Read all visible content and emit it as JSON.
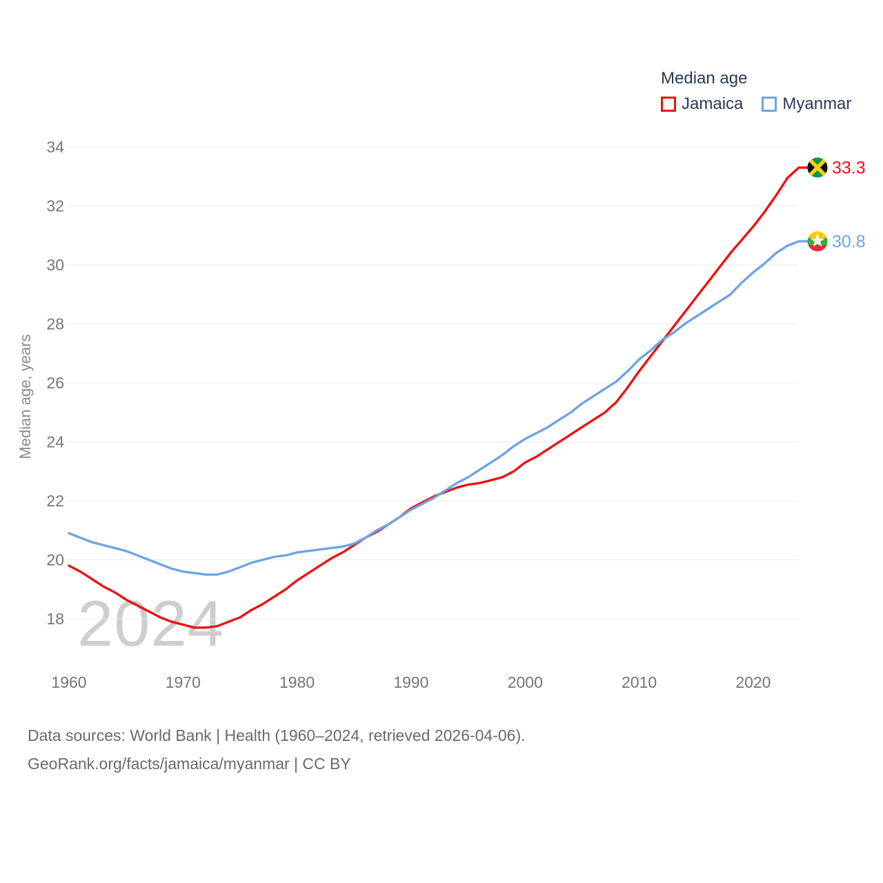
{
  "chart_data": {
    "type": "line",
    "title": "Median age",
    "ylabel": "Median age, years",
    "years_range": [
      1960,
      2024
    ],
    "xticks": [
      1960,
      1970,
      1980,
      1990,
      2000,
      2010,
      2020
    ],
    "yticks": [
      18,
      20,
      22,
      24,
      26,
      28,
      30,
      32,
      34
    ],
    "ylim": [
      17.2,
      34.6
    ],
    "grid": "horizontal",
    "legend_position": "top-right",
    "watermark": "2024",
    "series": [
      {
        "name": "Jamaica",
        "color": "#ee1111",
        "end_label": "33.3",
        "values": [
          19.8,
          19.6,
          19.35,
          19.1,
          18.9,
          18.65,
          18.45,
          18.25,
          18.05,
          17.9,
          17.8,
          17.7,
          17.7,
          17.75,
          17.9,
          18.05,
          18.3,
          18.5,
          18.75,
          19.0,
          19.3,
          19.55,
          19.8,
          20.05,
          20.25,
          20.5,
          20.75,
          20.95,
          21.2,
          21.45,
          21.75,
          21.95,
          22.15,
          22.3,
          22.45,
          22.55,
          22.6,
          22.7,
          22.8,
          23.0,
          23.3,
          23.5,
          23.75,
          24.0,
          24.25,
          24.5,
          24.75,
          25.0,
          25.35,
          25.85,
          26.4,
          26.9,
          27.4,
          27.9,
          28.4,
          28.9,
          29.4,
          29.9,
          30.4,
          30.85,
          31.3,
          31.8,
          32.35,
          32.95,
          33.3
        ]
      },
      {
        "name": "Myanmar",
        "color": "#6da4e4",
        "end_label": "30.8",
        "values": [
          20.9,
          20.75,
          20.6,
          20.5,
          20.4,
          20.3,
          20.15,
          20.0,
          19.85,
          19.7,
          19.6,
          19.55,
          19.5,
          19.5,
          19.6,
          19.75,
          19.9,
          20.0,
          20.1,
          20.15,
          20.25,
          20.3,
          20.35,
          20.4,
          20.45,
          20.55,
          20.75,
          21.0,
          21.2,
          21.45,
          21.7,
          21.9,
          22.1,
          22.35,
          22.6,
          22.8,
          23.05,
          23.3,
          23.55,
          23.85,
          24.1,
          24.3,
          24.5,
          24.75,
          25.0,
          25.3,
          25.55,
          25.8,
          26.05,
          26.4,
          26.8,
          27.1,
          27.45,
          27.7,
          28.0,
          28.25,
          28.5,
          28.75,
          29.0,
          29.4,
          29.75,
          30.05,
          30.4,
          30.65,
          30.8
        ]
      }
    ]
  },
  "footer": {
    "line1": "Data sources: World Bank | Health (1960–2024, retrieved 2026-04-06).",
    "line2": "GeoRank.org/facts/jamaica/myanmar | CC BY"
  }
}
